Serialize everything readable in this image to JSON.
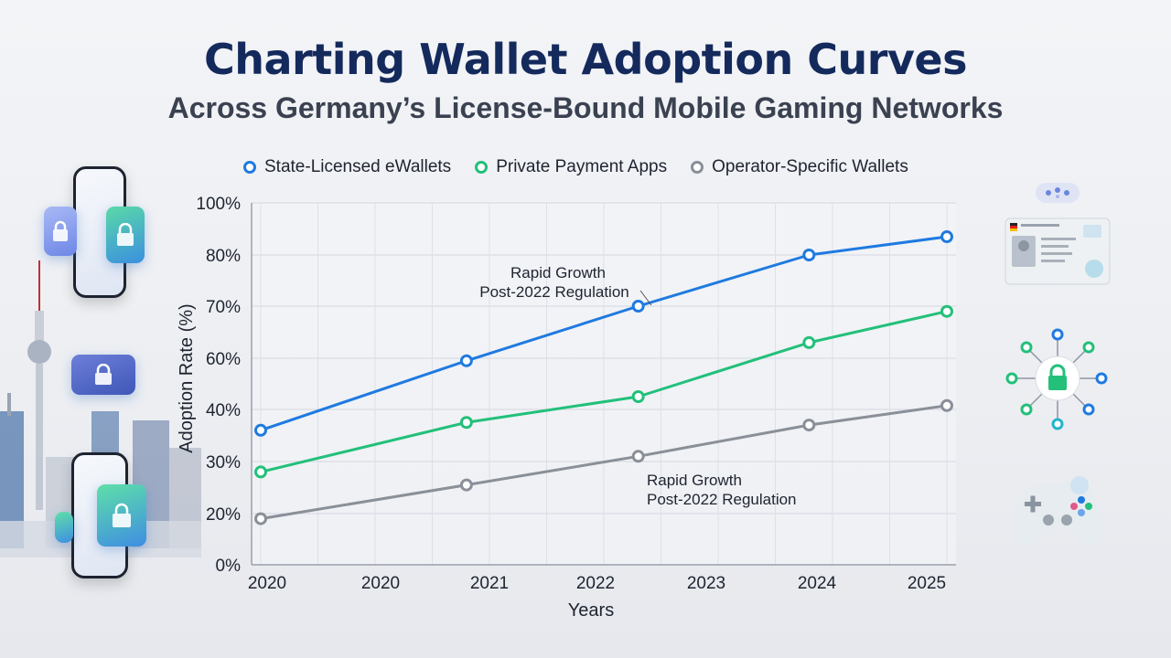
{
  "header": {
    "title": "Charting Wallet Adoption Curves",
    "subtitle": "Across Germany’s License-Bound Mobile Gaming Networks"
  },
  "icons": [
    "phone-lock-icon",
    "city-skyline-icon",
    "wallet-lock-icon",
    "gamepad-icon",
    "id-card-icon",
    "network-lock-icon",
    "game-controller-icon"
  ],
  "colors": {
    "title": "#142a5c",
    "state_licensed": "#1f7ae0",
    "private_apps": "#22c07a",
    "operator_specific": "#8a8f98"
  },
  "chart_data": {
    "type": "line",
    "x_tick_labels": [
      "2020",
      "2020",
      "2021",
      "2022",
      "2023",
      "2024",
      "2025"
    ],
    "xlabel": "Years",
    "ylabel": "Adoption Rate (%)",
    "y_tick_labels": [
      "0%",
      "20%",
      "30%",
      "40%",
      "60%",
      "70%",
      "80%",
      "100%"
    ],
    "grid": true,
    "legend_position": "top",
    "series": [
      {
        "name": "State-Licensed eWallets",
        "color": "#1f7ae0",
        "points": [
          [
            0,
            36
          ],
          [
            2,
            59
          ],
          [
            3.67,
            70
          ],
          [
            5.33,
            80
          ],
          [
            6.67,
            87
          ]
        ]
      },
      {
        "name": "Private Payment Apps",
        "color": "#22c07a",
        "points": [
          [
            0,
            28
          ],
          [
            2,
            37.5
          ],
          [
            3.67,
            45
          ],
          [
            5.33,
            63
          ],
          [
            6.67,
            69
          ]
        ]
      },
      {
        "name": "Operator-Specific Wallets",
        "color": "#8a8f98",
        "points": [
          [
            0,
            18
          ],
          [
            2,
            25.5
          ],
          [
            3.67,
            31
          ],
          [
            5.33,
            37
          ],
          [
            6.67,
            41.5
          ]
        ]
      }
    ],
    "annotations": [
      {
        "text": [
          "Rapid Growth",
          "Post-2022 Regulation"
        ],
        "series": 0
      },
      {
        "text": [
          "Rapid Growth",
          "Post-2022 Regulation"
        ],
        "series": 2
      }
    ]
  }
}
